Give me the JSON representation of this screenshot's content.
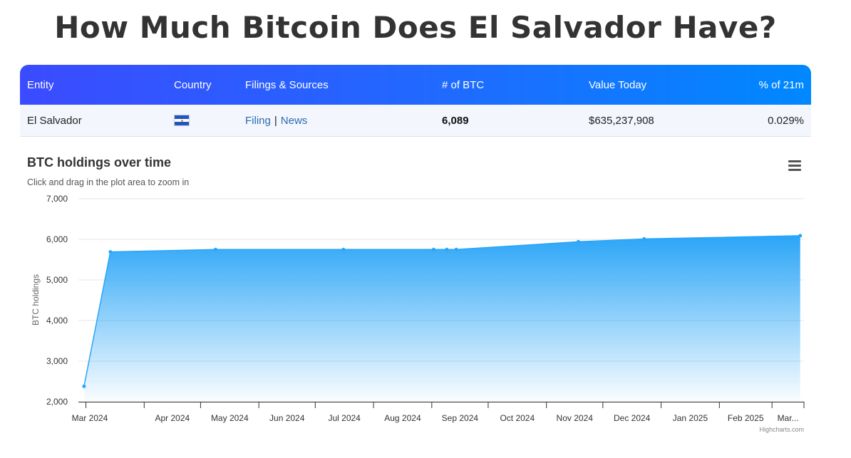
{
  "header": {
    "title": "How Much Bitcoin Does El Salvador Have?"
  },
  "table": {
    "columns": [
      "Entity",
      "Country",
      "Filings & Sources",
      "# of BTC",
      "Value Today",
      "% of 21m"
    ],
    "row": {
      "entity": "El Salvador",
      "country_flag": "el-salvador-flag",
      "filing_link": "Filing",
      "separator": "|",
      "news_link": "News",
      "btc": "6,089",
      "value": "$635,237,908",
      "pct": "0.029%"
    }
  },
  "chart_header": {
    "title": "BTC holdings over time",
    "subtitle": "Click and drag in the plot area to zoom in",
    "menu_icon": "hamburger-menu-icon"
  },
  "credits": "Highcharts.com",
  "colors": {
    "header_start": "#3b4bff",
    "header_end": "#0088ff",
    "series": "#2196f3",
    "link": "#2b6cb0"
  },
  "chart_data": {
    "type": "area",
    "ylabel": "BTC holdings",
    "ylim": [
      2000,
      7000
    ],
    "yticks": [
      2000,
      3000,
      4000,
      5000,
      6000,
      7000
    ],
    "ytick_labels": [
      "2,000",
      "3,000",
      "4,000",
      "5,000",
      "6,000",
      "7,000"
    ],
    "xlim": [
      "2024-02-26",
      "2025-03-18"
    ],
    "xticks": [
      "2024-03-01",
      "2024-04-01",
      "2024-05-01",
      "2024-06-01",
      "2024-07-01",
      "2024-08-01",
      "2024-09-01",
      "2024-10-01",
      "2024-11-01",
      "2024-12-01",
      "2025-01-01",
      "2025-02-01",
      "2025-03-01"
    ],
    "xtick_labels": [
      "Mar 2024",
      "Apr 2024",
      "May 2024",
      "Jun 2024",
      "Jul 2024",
      "Aug 2024",
      "Sep 2024",
      "Oct 2024",
      "Nov 2024",
      "Dec 2024",
      "Jan 2025",
      "Feb 2025",
      "Mar..."
    ],
    "grid": true,
    "legend": "none",
    "x": [
      "2024-02-29",
      "2024-03-14",
      "2024-05-09",
      "2024-07-16",
      "2024-09-02",
      "2024-09-09",
      "2024-09-14",
      "2024-11-18",
      "2024-12-23",
      "2025-03-16"
    ],
    "y": [
      2380,
      5690,
      5750,
      5750,
      5750,
      5750,
      5750,
      5940,
      6010,
      6089
    ]
  }
}
